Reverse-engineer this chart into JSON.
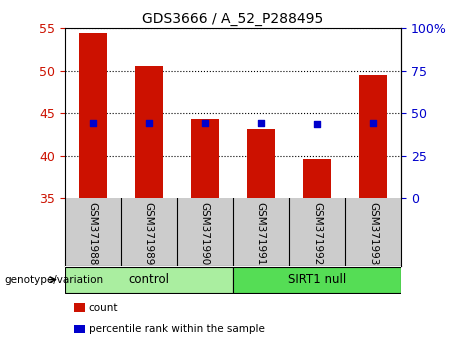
{
  "title": "GDS3666 / A_52_P288495",
  "samples": [
    "GSM371988",
    "GSM371989",
    "GSM371990",
    "GSM371991",
    "GSM371992",
    "GSM371993"
  ],
  "counts": [
    54.5,
    50.6,
    44.3,
    43.1,
    39.6,
    49.5
  ],
  "percentile_ranks": [
    44.0,
    44.5,
    44.0,
    44.0,
    43.5,
    44.2
  ],
  "ylim_left": [
    35,
    55
  ],
  "ylim_right": [
    0,
    100
  ],
  "yticks_left": [
    35,
    40,
    45,
    50,
    55
  ],
  "yticks_right": [
    0,
    25,
    50,
    75,
    100
  ],
  "bar_color": "#CC1100",
  "dot_color": "#0000CC",
  "bar_bottom": 35,
  "groups": [
    {
      "label": "control",
      "indices": [
        0,
        1,
        2
      ],
      "color": "#AAEEA0"
    },
    {
      "label": "SIRT1 null",
      "indices": [
        3,
        4,
        5
      ],
      "color": "#55DD55"
    }
  ],
  "group_label": "genotype/variation",
  "legend_count_label": "count",
  "legend_percentile_label": "percentile rank within the sample",
  "left_tick_color": "#CC1100",
  "right_tick_color": "#0000CC",
  "bg_color": "#FFFFFF",
  "xlabel_area_color": "#CCCCCC"
}
